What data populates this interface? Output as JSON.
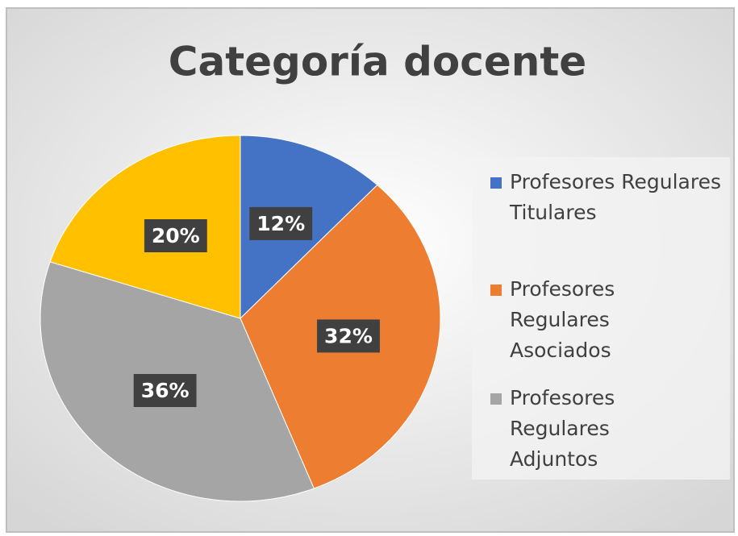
{
  "chart_data": {
    "type": "pie",
    "title": "Categoría docente",
    "categories": [
      "Profesores Regulares Titulares",
      "Profesores Regulares Asociados",
      "Profesores Regulares Adjuntos",
      null
    ],
    "values": [
      12,
      32,
      36,
      20
    ],
    "value_labels": [
      "12%",
      "32%",
      "36%",
      "20%"
    ],
    "colors": [
      "#4472c4",
      "#ed7d31",
      "#a5a5a5",
      "#ffc000"
    ],
    "legend": "right"
  }
}
